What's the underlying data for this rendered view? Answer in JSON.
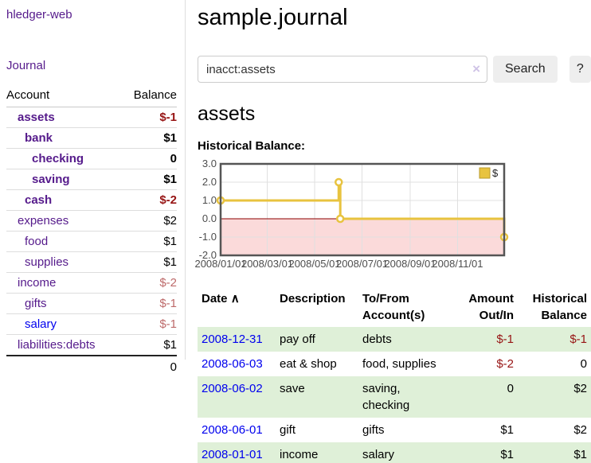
{
  "sidebar": {
    "app_title": "hledger-web",
    "journal_label": "Journal",
    "accounts_table": {
      "col_account": "Account",
      "col_balance": "Balance",
      "rows": [
        {
          "name": "assets",
          "balance": "$-1"
        },
        {
          "name": "bank",
          "balance": "$1"
        },
        {
          "name": "checking",
          "balance": "0"
        },
        {
          "name": "saving",
          "balance": "$1"
        },
        {
          "name": "cash",
          "balance": "$-2"
        },
        {
          "name": "expenses",
          "balance": "$2"
        },
        {
          "name": "food",
          "balance": "$1"
        },
        {
          "name": "supplies",
          "balance": "$1"
        },
        {
          "name": "income",
          "balance": "$-2"
        },
        {
          "name": "gifts",
          "balance": "$-1"
        },
        {
          "name": "salary",
          "balance": "$-1"
        },
        {
          "name": "liabilities:debts",
          "balance": "$1"
        }
      ],
      "total": "0"
    }
  },
  "main": {
    "title": "sample.journal",
    "search": {
      "value": "inacct:assets",
      "clear_icon": "×",
      "search_button": "Search",
      "help_button": "?"
    },
    "account_heading": "assets",
    "chart_heading": "Historical Balance:"
  },
  "chart_data": {
    "type": "line",
    "style": "step-after",
    "series": [
      {
        "name": "$",
        "points": [
          {
            "date": "2008-01-01",
            "value": 1.0
          },
          {
            "date": "2008-06-01",
            "value": 2.0
          },
          {
            "date": "2008-06-03",
            "value": 0.0
          },
          {
            "date": "2008-12-31",
            "value": -1.0
          }
        ]
      }
    ],
    "x_range": [
      "2008-01-01",
      "2008-12-31"
    ],
    "x_ticks": [
      "2008/01/01",
      "2008/03/01",
      "2008/05/01",
      "2008/07/01",
      "2008/09/01",
      "2008/11/01"
    ],
    "y_ticks": [
      "3.0",
      "2.0",
      "1.0",
      "0.0",
      "-1.0",
      "-2.0"
    ],
    "ylim": [
      -2,
      3
    ],
    "legend_position": "top-right",
    "grid": true,
    "colors": {
      "line": "#e8c33f",
      "marker_fill": "#ffffff",
      "negative_region": "#fbdada",
      "zero_line": "#8b0000",
      "border": "#555555",
      "gridline": "#e0e0e0",
      "tick_text": "#4d4d4d"
    }
  },
  "transactions": {
    "headers": {
      "date": "Date",
      "sort_icon": "∧",
      "description": "Description",
      "accounts": "To/From Account(s)",
      "amount": "Amount Out/In",
      "balance": "Historical Balance"
    },
    "rows": [
      {
        "date": "2008-12-31",
        "description": "pay off",
        "accounts": "debts",
        "amount": "$-1",
        "balance": "$-1"
      },
      {
        "date": "2008-06-03",
        "description": "eat & shop",
        "accounts": "food, supplies",
        "amount": "$-2",
        "balance": "0"
      },
      {
        "date": "2008-06-02",
        "description": "save",
        "accounts": "saving, checking",
        "amount": "0",
        "balance": "$2"
      },
      {
        "date": "2008-06-01",
        "description": "gift",
        "accounts": "gifts",
        "amount": "$1",
        "balance": "$2"
      },
      {
        "date": "2008-01-01",
        "description": "income",
        "accounts": "salary",
        "amount": "$1",
        "balance": "$1"
      }
    ]
  }
}
